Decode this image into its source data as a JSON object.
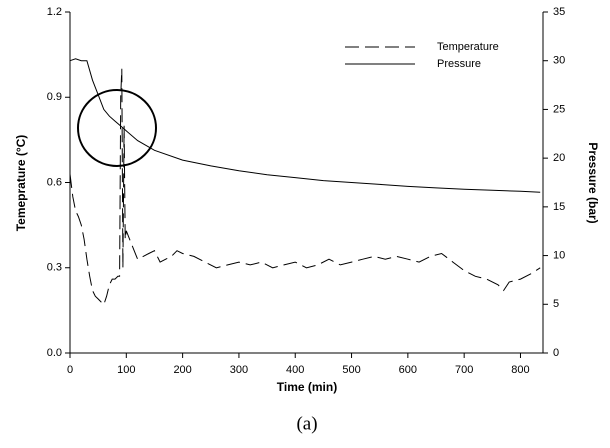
{
  "chart_data": {
    "type": "line",
    "x_label": "Time (min)",
    "y_label": "Temeprature (°C)",
    "y2_label": "Pressure (bar)",
    "caption": "(a)",
    "xlim": [
      0,
      840
    ],
    "xticks": [
      0,
      100,
      200,
      300,
      400,
      500,
      600,
      700,
      800
    ],
    "ylim": [
      0,
      1.2
    ],
    "yticks": [
      {
        "value": 0,
        "label": "0.0"
      },
      0.3,
      0.6,
      0.9,
      1.2
    ],
    "y2lim": [
      0,
      35
    ],
    "y2ticks": [
      0,
      5,
      10,
      15,
      20,
      25,
      30,
      35
    ],
    "legend": "upper right",
    "grid": false,
    "series": [
      {
        "name": "Temperature",
        "color": "#000000",
        "line_style": "dashed",
        "x": [
          0,
          5,
          10,
          15,
          20,
          25,
          30,
          35,
          40,
          45,
          50,
          55,
          60,
          65,
          70,
          75,
          80,
          85,
          88,
          90,
          92,
          94,
          96,
          98,
          100,
          110,
          120,
          130,
          140,
          150,
          160,
          170,
          180,
          190,
          200,
          220,
          240,
          260,
          280,
          300,
          320,
          340,
          360,
          380,
          400,
          420,
          440,
          460,
          480,
          500,
          520,
          540,
          560,
          580,
          600,
          620,
          640,
          660,
          680,
          700,
          720,
          740,
          760,
          770,
          780,
          800,
          820,
          835
        ],
        "values": [
          0.63,
          0.55,
          0.5,
          0.48,
          0.45,
          0.4,
          0.33,
          0.27,
          0.22,
          0.2,
          0.19,
          0.18,
          0.17,
          0.2,
          0.24,
          0.26,
          0.26,
          0.27,
          0.27,
          0.9,
          1.0,
          0.3,
          0.8,
          0.4,
          0.43,
          0.38,
          0.33,
          0.34,
          0.35,
          0.36,
          0.32,
          0.33,
          0.34,
          0.36,
          0.35,
          0.34,
          0.32,
          0.3,
          0.31,
          0.32,
          0.31,
          0.32,
          0.3,
          0.31,
          0.32,
          0.3,
          0.31,
          0.33,
          0.31,
          0.32,
          0.33,
          0.34,
          0.33,
          0.34,
          0.33,
          0.32,
          0.34,
          0.35,
          0.32,
          0.29,
          0.27,
          0.26,
          0.24,
          0.22,
          0.25,
          0.26,
          0.28,
          0.3
        ]
      },
      {
        "name": "Pressure",
        "color": "#000000",
        "line_style": "solid",
        "axis": "y2",
        "x": [
          0,
          10,
          20,
          30,
          40,
          50,
          60,
          70,
          80,
          90,
          100,
          120,
          150,
          200,
          250,
          300,
          350,
          400,
          450,
          500,
          550,
          600,
          650,
          700,
          750,
          800,
          835
        ],
        "values": [
          30,
          30.2,
          30,
          30,
          28,
          26.5,
          25,
          24.3,
          23.8,
          23.3,
          22.8,
          21.8,
          20.8,
          19.8,
          19.2,
          18.7,
          18.3,
          18.0,
          17.7,
          17.5,
          17.3,
          17.1,
          16.95,
          16.8,
          16.7,
          16.6,
          16.5
        ]
      }
    ]
  }
}
